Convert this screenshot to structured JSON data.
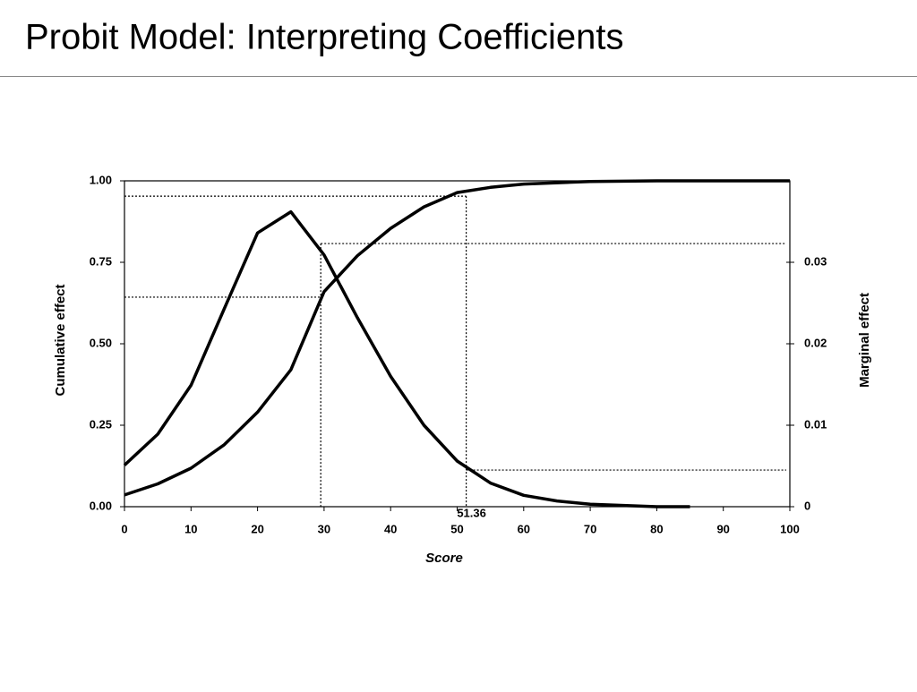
{
  "header": {
    "title": "Probit Model: Interpreting Coefficients"
  },
  "chart_data": {
    "type": "line",
    "xlabel": "Score",
    "ylabel": "Cumulative effect",
    "y2label": "Marginal effect",
    "xlim": [
      0,
      100
    ],
    "xticks": [
      0,
      10,
      20,
      30,
      40,
      50,
      60,
      70,
      80,
      90,
      100
    ],
    "ylim": [
      0,
      1
    ],
    "yticks": [
      {
        "value": 0,
        "label": "0.00"
      },
      {
        "value": 0.25,
        "label": "0.25"
      },
      {
        "value": 0.5,
        "label": "0.50"
      },
      {
        "value": 0.75,
        "label": "0.75"
      },
      {
        "value": 1,
        "label": "1.00"
      }
    ],
    "y2lim": [
      0,
      0.04
    ],
    "y2ticks": [
      0,
      0.01,
      0.02,
      0.03
    ],
    "series": [
      {
        "color": "#000000",
        "x": [
          0,
          5,
          10,
          15,
          20,
          25,
          30,
          35,
          40,
          45,
          50,
          55,
          60,
          70,
          80,
          90,
          100
        ],
        "values": [
          0.036,
          0.07,
          0.118,
          0.19,
          0.29,
          0.42,
          0.66,
          0.77,
          0.854,
          0.92,
          0.964,
          0.98,
          0.99,
          0.998,
          1.0,
          1.0,
          1.0
        ]
      },
      {
        "color": "#000000",
        "axis": "y2",
        "x": [
          0,
          5,
          10,
          15,
          20,
          25,
          30,
          35,
          40,
          45,
          50,
          55,
          60,
          65,
          70,
          80,
          85
        ],
        "values": [
          0.0051,
          0.0089,
          0.0149,
          0.0243,
          0.0336,
          0.0362,
          0.0309,
          0.0232,
          0.016,
          0.01,
          0.0056,
          0.0029,
          0.0014,
          0.0007,
          0.0003,
          0,
          0
        ]
      }
    ],
    "markers": [
      {
        "x": 29.5,
        "y": 0.643,
        "y2": 0.0323
      },
      {
        "x": 51.36,
        "label": "51.36",
        "y": 0.953,
        "y2": 0.0045
      }
    ]
  }
}
